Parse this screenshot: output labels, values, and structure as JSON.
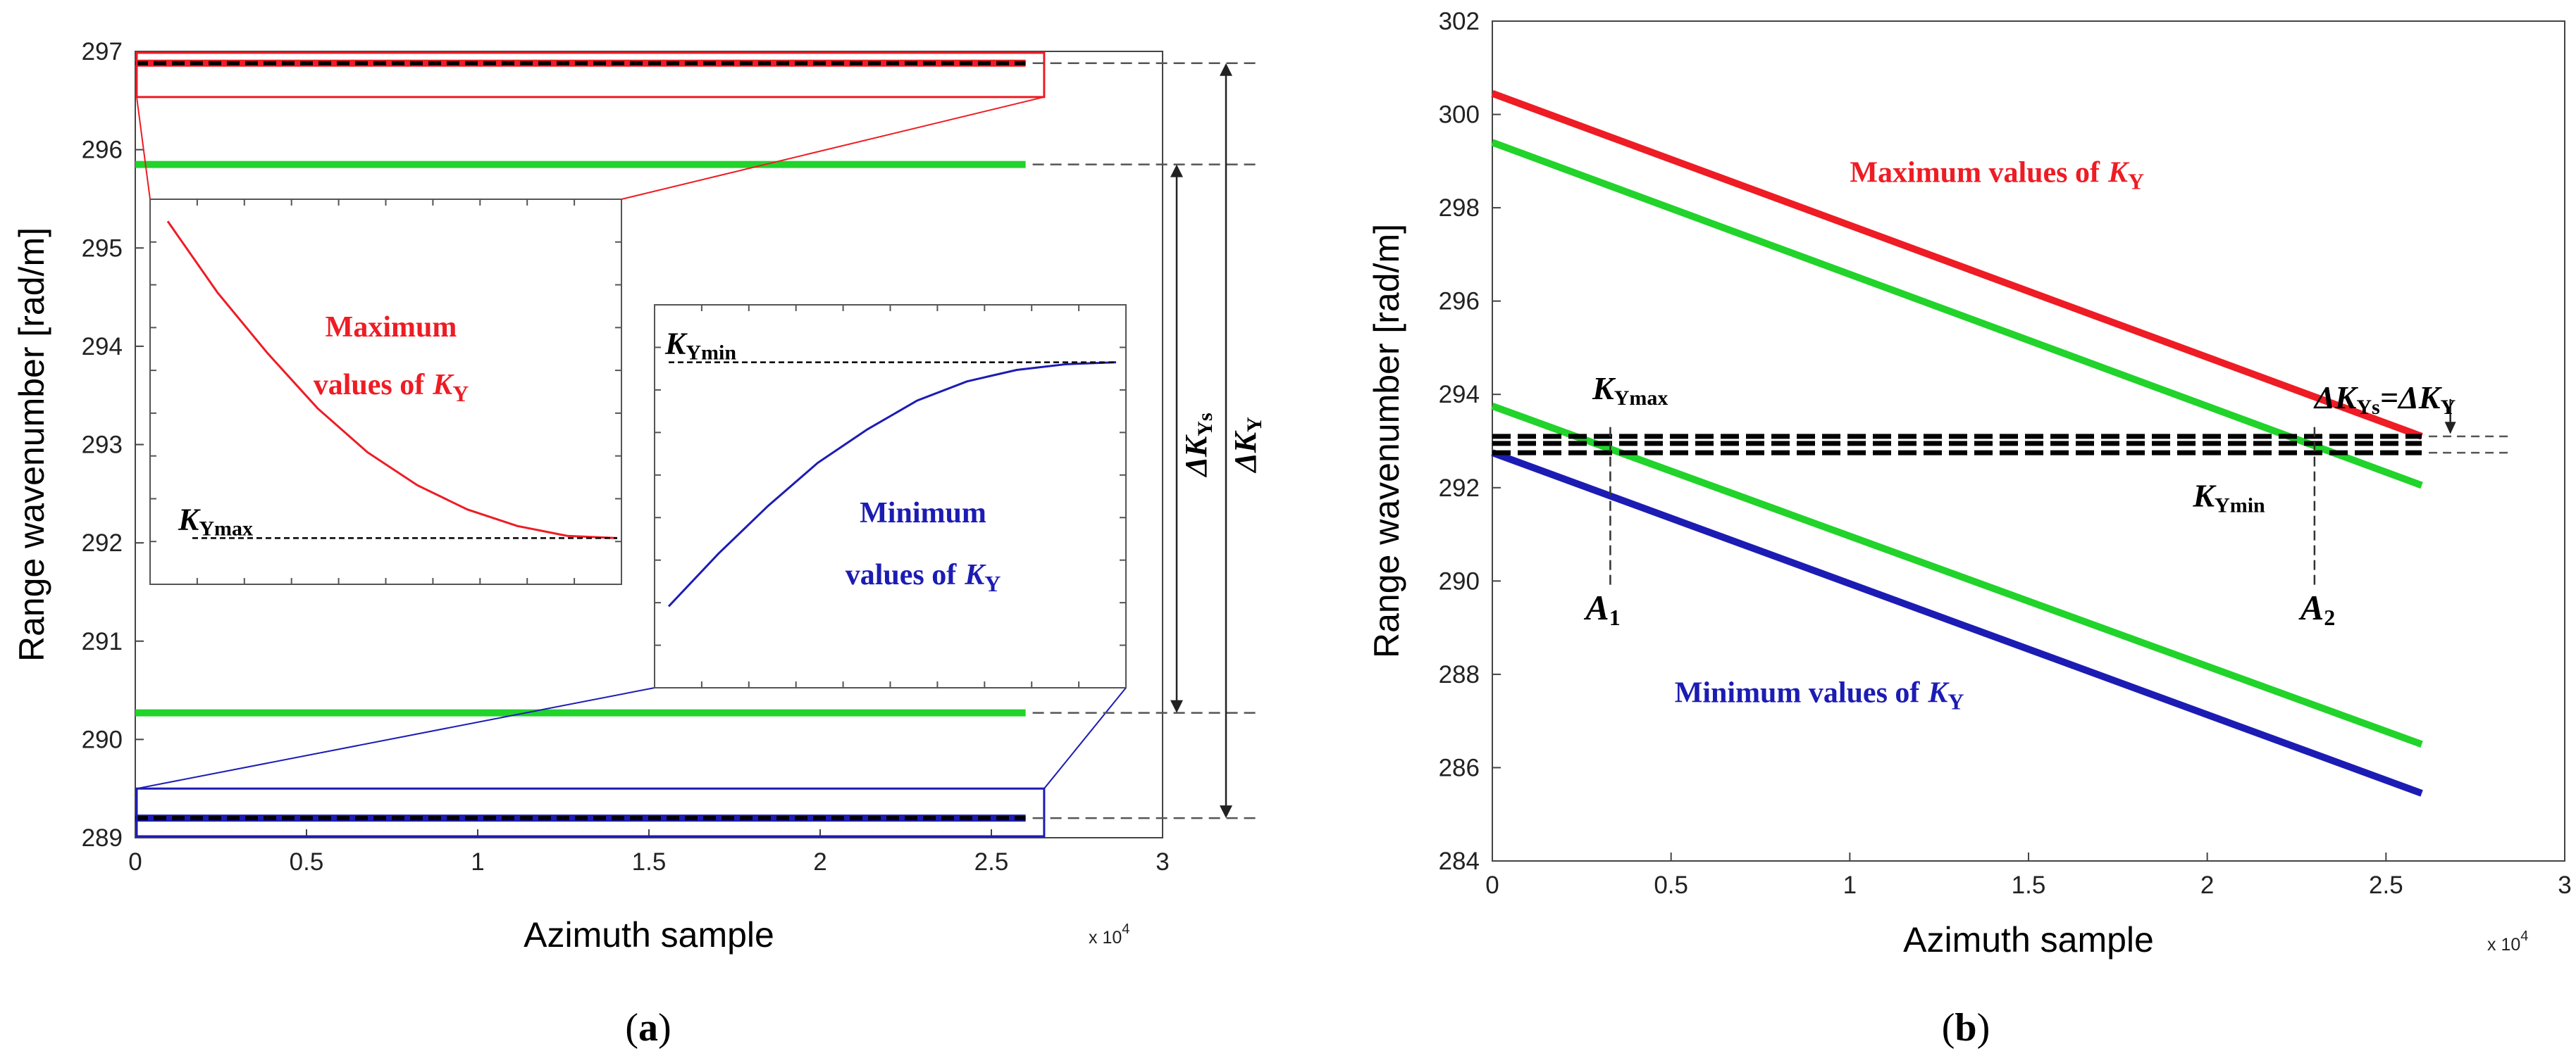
{
  "chart_data": [
    {
      "panel": "(a)",
      "type": "line",
      "xlabel": "Azimuth sample",
      "ylabel": "Range wavenumber [rad/m]",
      "x_exponent": "x 10",
      "x_exponent_power": "4",
      "xlim": [
        0,
        3
      ],
      "ylim": [
        289,
        297
      ],
      "xticks": [
        "0",
        "0.5",
        "1",
        "1.5",
        "2",
        "2.5",
        "3"
      ],
      "yticks": [
        "289",
        "290",
        "291",
        "292",
        "293",
        "294",
        "295",
        "296",
        "297"
      ],
      "colors": {
        "max": "#ee1c24",
        "min": "#1c1cb4",
        "green": "#21d32a",
        "ref": "#000000"
      },
      "series": [
        {
          "name": "Maximum values of K_Y",
          "color": "red",
          "x": [
            0,
            2.6
          ],
          "y": [
            296.88,
            296.88
          ]
        },
        {
          "name": "K_Ymax",
          "color": "green",
          "x": [
            0,
            2.6
          ],
          "y": [
            295.85,
            295.85
          ]
        },
        {
          "name": "K_Ymin",
          "color": "green",
          "x": [
            0,
            2.6
          ],
          "y": [
            290.27,
            290.27
          ]
        },
        {
          "name": "Minimum values of K_Y",
          "color": "blue",
          "x": [
            0,
            2.6
          ],
          "y": [
            289.2,
            289.2
          ]
        }
      ],
      "inset_max": {
        "label_line1": "Maximum",
        "label_line2": "values of",
        "curve": [
          295.0,
          294.35,
          293.8,
          293.3,
          292.9,
          292.6,
          292.38,
          292.23,
          292.14,
          292.12
        ],
        "ref_level": 292.12,
        "ref_label": "K",
        "ref_sub": "Ymax"
      },
      "inset_min": {
        "label_line1": "Minimum",
        "label_line2": "values of",
        "curve": [
          291.15,
          291.7,
          292.2,
          292.65,
          293.0,
          293.3,
          293.5,
          293.62,
          293.68,
          293.7
        ],
        "ref_level": 293.7,
        "ref_label": "K",
        "ref_sub": "Ymin"
      },
      "arrows": [
        {
          "label": "ΔK",
          "sub": "Ys",
          "from": 290.27,
          "to": 295.85
        },
        {
          "label": "ΔK",
          "sub": "Y",
          "from": 289.2,
          "to": 296.88
        }
      ],
      "letter_K": "K",
      "letter_Y": "Y",
      "caption": "(a)",
      "caption_letter": "a"
    },
    {
      "panel": "(b)",
      "type": "line",
      "xlabel": "Azimuth sample",
      "ylabel": "Range wavenumber [rad/m]",
      "x_exponent": "x 10",
      "x_exponent_power": "4",
      "xlim": [
        0,
        3
      ],
      "ylim": [
        284,
        302
      ],
      "xticks": [
        "0",
        "0.5",
        "1",
        "1.5",
        "2",
        "2.5",
        "3"
      ],
      "yticks": [
        "284",
        "286",
        "288",
        "290",
        "292",
        "294",
        "296",
        "298",
        "300",
        "302"
      ],
      "series": [
        {
          "name": "Maximum values of K_Y",
          "color": "red",
          "x": [
            0,
            2.6
          ],
          "y": [
            300.45,
            293.1
          ]
        },
        {
          "name": "green upper",
          "color": "green",
          "x": [
            0,
            2.6
          ],
          "y": [
            299.4,
            292.05
          ]
        },
        {
          "name": "green lower",
          "color": "green",
          "x": [
            0,
            2.6
          ],
          "y": [
            293.75,
            286.5
          ]
        },
        {
          "name": "Minimum values of K_Y",
          "color": "blue",
          "x": [
            0,
            2.6
          ],
          "y": [
            292.75,
            285.45
          ]
        }
      ],
      "ref_lines": [
        293.1,
        292.95,
        292.75
      ],
      "labels": {
        "max": "Maximum values of",
        "min": "Minimum values of",
        "K": "K",
        "Y": "Y",
        "kymax_sub": "Ymax",
        "kymin_sub": "Ymin",
        "delta": "ΔK",
        "ys": "Ys",
        "eq": "=ΔK",
        "A1": "A",
        "A1_sub": "1",
        "A2": "A",
        "A2_sub": "2"
      },
      "A1_x": 0.33,
      "A2_x": 2.3,
      "caption": "(b)",
      "caption_letter": "b"
    }
  ]
}
